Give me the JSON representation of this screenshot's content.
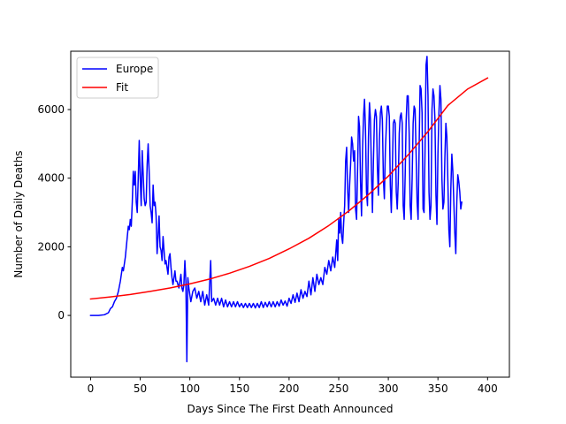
{
  "chart_data": {
    "type": "line",
    "title": "",
    "xlabel": "Days Since The First Death Announced",
    "ylabel": "Number of Daily Deaths",
    "xlim": [
      -20,
      422
    ],
    "ylim": [
      -1800,
      7700
    ],
    "xticks": [
      0,
      50,
      100,
      150,
      200,
      250,
      300,
      350,
      400
    ],
    "yticks": [
      0,
      2000,
      4000,
      6000
    ],
    "grid": false,
    "legend_position": "upper-left",
    "series": [
      {
        "name": "Europe",
        "color": "#0000ff",
        "points": [
          [
            0,
            0
          ],
          [
            8,
            0
          ],
          [
            14,
            20
          ],
          [
            18,
            80
          ],
          [
            20,
            200
          ],
          [
            22,
            250
          ],
          [
            24,
            400
          ],
          [
            26,
            500
          ],
          [
            28,
            700
          ],
          [
            30,
            1000
          ],
          [
            32,
            1400
          ],
          [
            33,
            1300
          ],
          [
            35,
            1700
          ],
          [
            37,
            2300
          ],
          [
            38,
            2600
          ],
          [
            39,
            2500
          ],
          [
            40,
            2800
          ],
          [
            41,
            2600
          ],
          [
            42,
            3300
          ],
          [
            43,
            4200
          ],
          [
            44,
            3800
          ],
          [
            45,
            4200
          ],
          [
            46,
            3300
          ],
          [
            47,
            3000
          ],
          [
            48,
            4000
          ],
          [
            49,
            5100
          ],
          [
            50,
            4000
          ],
          [
            51,
            3200
          ],
          [
            52,
            4800
          ],
          [
            53,
            4100
          ],
          [
            54,
            3400
          ],
          [
            55,
            3200
          ],
          [
            56,
            3300
          ],
          [
            57,
            4400
          ],
          [
            58,
            5000
          ],
          [
            59,
            4200
          ],
          [
            60,
            3200
          ],
          [
            61,
            3000
          ],
          [
            62,
            2700
          ],
          [
            63,
            3800
          ],
          [
            64,
            3200
          ],
          [
            65,
            3300
          ],
          [
            66,
            2900
          ],
          [
            67,
            1800
          ],
          [
            68,
            2300
          ],
          [
            69,
            2900
          ],
          [
            70,
            2000
          ],
          [
            71,
            1900
          ],
          [
            72,
            1600
          ],
          [
            73,
            2300
          ],
          [
            74,
            1900
          ],
          [
            75,
            1500
          ],
          [
            76,
            1600
          ],
          [
            77,
            1400
          ],
          [
            78,
            1200
          ],
          [
            79,
            1700
          ],
          [
            80,
            1800
          ],
          [
            81,
            1400
          ],
          [
            82,
            1100
          ],
          [
            83,
            900
          ],
          [
            84,
            1100
          ],
          [
            85,
            1300
          ],
          [
            86,
            1000
          ],
          [
            87,
            1000
          ],
          [
            88,
            900
          ],
          [
            89,
            800
          ],
          [
            90,
            1000
          ],
          [
            91,
            1200
          ],
          [
            92,
            800
          ],
          [
            93,
            700
          ],
          [
            94,
            900
          ],
          [
            95,
            1600
          ],
          [
            96,
            1000
          ],
          [
            97,
            -1350
          ],
          [
            98,
            1100
          ],
          [
            99,
            800
          ],
          [
            100,
            600
          ],
          [
            101,
            400
          ],
          [
            103,
            700
          ],
          [
            105,
            800
          ],
          [
            107,
            500
          ],
          [
            109,
            700
          ],
          [
            111,
            400
          ],
          [
            113,
            700
          ],
          [
            115,
            300
          ],
          [
            117,
            600
          ],
          [
            119,
            300
          ],
          [
            121,
            1600
          ],
          [
            122,
            400
          ],
          [
            124,
            500
          ],
          [
            126,
            300
          ],
          [
            128,
            500
          ],
          [
            130,
            300
          ],
          [
            132,
            500
          ],
          [
            134,
            250
          ],
          [
            136,
            450
          ],
          [
            138,
            250
          ],
          [
            140,
            400
          ],
          [
            142,
            250
          ],
          [
            144,
            400
          ],
          [
            146,
            250
          ],
          [
            148,
            400
          ],
          [
            150,
            250
          ],
          [
            152,
            350
          ],
          [
            154,
            230
          ],
          [
            156,
            350
          ],
          [
            158,
            230
          ],
          [
            160,
            350
          ],
          [
            162,
            230
          ],
          [
            164,
            350
          ],
          [
            166,
            220
          ],
          [
            168,
            350
          ],
          [
            170,
            230
          ],
          [
            172,
            400
          ],
          [
            174,
            230
          ],
          [
            176,
            380
          ],
          [
            178,
            250
          ],
          [
            180,
            400
          ],
          [
            182,
            250
          ],
          [
            184,
            400
          ],
          [
            186,
            250
          ],
          [
            188,
            400
          ],
          [
            190,
            270
          ],
          [
            192,
            450
          ],
          [
            194,
            300
          ],
          [
            196,
            420
          ],
          [
            198,
            270
          ],
          [
            200,
            500
          ],
          [
            202,
            350
          ],
          [
            204,
            600
          ],
          [
            206,
            380
          ],
          [
            208,
            650
          ],
          [
            210,
            400
          ],
          [
            212,
            750
          ],
          [
            214,
            500
          ],
          [
            216,
            700
          ],
          [
            218,
            550
          ],
          [
            220,
            1000
          ],
          [
            222,
            600
          ],
          [
            224,
            1100
          ],
          [
            226,
            700
          ],
          [
            228,
            1200
          ],
          [
            230,
            900
          ],
          [
            232,
            1100
          ],
          [
            234,
            900
          ],
          [
            236,
            1400
          ],
          [
            238,
            1200
          ],
          [
            240,
            1600
          ],
          [
            242,
            1300
          ],
          [
            244,
            1700
          ],
          [
            246,
            1400
          ],
          [
            248,
            2200
          ],
          [
            249,
            1600
          ],
          [
            250,
            2800
          ],
          [
            251,
            2400
          ],
          [
            252,
            3000
          ],
          [
            253,
            2300
          ],
          [
            254,
            2100
          ],
          [
            255,
            2700
          ],
          [
            256,
            3200
          ],
          [
            257,
            4500
          ],
          [
            258,
            4900
          ],
          [
            259,
            3700
          ],
          [
            260,
            3000
          ],
          [
            261,
            3800
          ],
          [
            262,
            4400
          ],
          [
            263,
            5200
          ],
          [
            264,
            5000
          ],
          [
            265,
            4500
          ],
          [
            266,
            4800
          ],
          [
            267,
            3100
          ],
          [
            268,
            2800
          ],
          [
            269,
            4200
          ],
          [
            270,
            5800
          ],
          [
            271,
            5500
          ],
          [
            272,
            3900
          ],
          [
            273,
            2900
          ],
          [
            274,
            4800
          ],
          [
            275,
            5800
          ],
          [
            276,
            6300
          ],
          [
            277,
            5400
          ],
          [
            278,
            3600
          ],
          [
            279,
            3200
          ],
          [
            280,
            5200
          ],
          [
            281,
            6200
          ],
          [
            282,
            5700
          ],
          [
            283,
            4200
          ],
          [
            284,
            3000
          ],
          [
            285,
            4500
          ],
          [
            286,
            5700
          ],
          [
            287,
            6000
          ],
          [
            288,
            5800
          ],
          [
            289,
            4300
          ],
          [
            290,
            3500
          ],
          [
            291,
            5100
          ],
          [
            292,
            5900
          ],
          [
            293,
            6100
          ],
          [
            294,
            5700
          ],
          [
            295,
            4000
          ],
          [
            296,
            3400
          ],
          [
            297,
            4800
          ],
          [
            298,
            5500
          ],
          [
            299,
            6100
          ],
          [
            300,
            6100
          ],
          [
            301,
            5800
          ],
          [
            302,
            3800
          ],
          [
            303,
            3000
          ],
          [
            304,
            4200
          ],
          [
            305,
            5600
          ],
          [
            306,
            5700
          ],
          [
            307,
            5600
          ],
          [
            308,
            3600
          ],
          [
            309,
            3100
          ],
          [
            310,
            3900
          ],
          [
            311,
            5300
          ],
          [
            312,
            5800
          ],
          [
            313,
            5900
          ],
          [
            314,
            5600
          ],
          [
            315,
            3200
          ],
          [
            316,
            2800
          ],
          [
            317,
            4100
          ],
          [
            318,
            5700
          ],
          [
            319,
            6400
          ],
          [
            320,
            6400
          ],
          [
            321,
            5300
          ],
          [
            322,
            3200
          ],
          [
            323,
            2800
          ],
          [
            324,
            4000
          ],
          [
            325,
            5600
          ],
          [
            326,
            6100
          ],
          [
            327,
            6000
          ],
          [
            328,
            4700
          ],
          [
            329,
            3300
          ],
          [
            330,
            2800
          ],
          [
            331,
            4800
          ],
          [
            332,
            6700
          ],
          [
            333,
            6600
          ],
          [
            334,
            5900
          ],
          [
            335,
            3100
          ],
          [
            336,
            3000
          ],
          [
            337,
            4800
          ],
          [
            338,
            7300
          ],
          [
            339,
            7550
          ],
          [
            340,
            6400
          ],
          [
            341,
            3600
          ],
          [
            342,
            2800
          ],
          [
            343,
            3200
          ],
          [
            344,
            6000
          ],
          [
            345,
            6600
          ],
          [
            346,
            6400
          ],
          [
            347,
            5700
          ],
          [
            348,
            3500
          ],
          [
            349,
            2650
          ],
          [
            350,
            4700
          ],
          [
            351,
            5900
          ],
          [
            352,
            6700
          ],
          [
            353,
            6300
          ],
          [
            354,
            4000
          ],
          [
            355,
            3100
          ],
          [
            356,
            3300
          ],
          [
            357,
            4600
          ],
          [
            358,
            5600
          ],
          [
            359,
            5200
          ],
          [
            360,
            3900
          ],
          [
            361,
            2500
          ],
          [
            362,
            2000
          ],
          [
            363,
            3700
          ],
          [
            364,
            4700
          ],
          [
            365,
            4200
          ],
          [
            366,
            3300
          ],
          [
            367,
            2400
          ],
          [
            368,
            1800
          ],
          [
            369,
            3300
          ],
          [
            370,
            4100
          ],
          [
            371,
            3900
          ],
          [
            372,
            3600
          ],
          [
            373,
            3100
          ],
          [
            374,
            3300
          ]
        ]
      },
      {
        "name": "Fit",
        "color": "#ff0000",
        "points": [
          [
            0,
            480
          ],
          [
            20,
            540
          ],
          [
            40,
            610
          ],
          [
            60,
            700
          ],
          [
            80,
            800
          ],
          [
            100,
            920
          ],
          [
            120,
            1060
          ],
          [
            140,
            1230
          ],
          [
            160,
            1430
          ],
          [
            180,
            1660
          ],
          [
            200,
            1940
          ],
          [
            220,
            2250
          ],
          [
            240,
            2620
          ],
          [
            260,
            3040
          ],
          [
            280,
            3520
          ],
          [
            300,
            4060
          ],
          [
            320,
            4680
          ],
          [
            340,
            5360
          ],
          [
            360,
            6120
          ],
          [
            380,
            6600
          ],
          [
            400,
            6920
          ]
        ]
      }
    ]
  }
}
